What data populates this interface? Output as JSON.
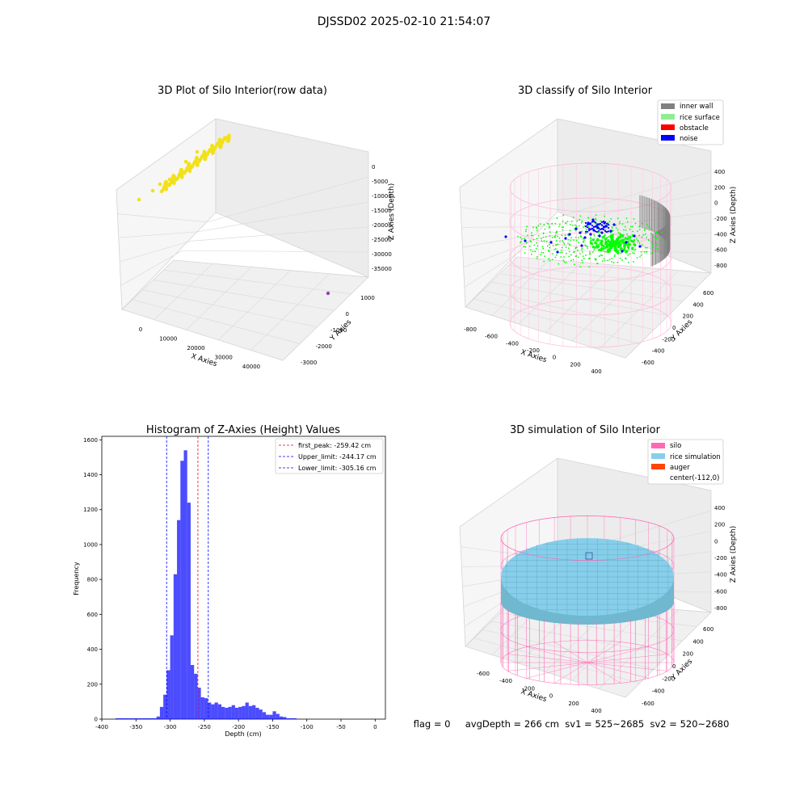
{
  "figure_title": "DJSSD02 2025-02-10 21:54:07",
  "status_line": "flag = 0     avgDepth = 266 cm  sv1 = 525~2685  sv2 = 520~2680",
  "colors": {
    "raw_points": "#f2e11b",
    "raw_outlier": "#8e44ad",
    "inner_wall": "#808080",
    "rice_surface": "#90ee90",
    "rice_points": "#00ff00",
    "obstacle": "#ff0000",
    "noise": "#0000ff",
    "silo_mesh": "#ff69b4",
    "rice_sim": "#87ceeb",
    "auger": "#ff4500",
    "histogram": "#0000ff",
    "first_peak": "#ff0000",
    "limits": "#0000ff"
  },
  "chart_data": [
    {
      "type": "scatter",
      "projection": "3d",
      "title": "3D Plot of Silo Interior(row data)",
      "xlabel": "X Axies",
      "ylabel": "Y Axies",
      "zlabel": "Z Axies (Depth)",
      "x_ticks": [
        "0",
        "10000",
        "20000",
        "30000",
        "40000"
      ],
      "y_ticks": [
        "-3000",
        "-2000",
        "-1000",
        "0",
        "1000"
      ],
      "z_ticks": [
        "-35000",
        "-30000",
        "-25000",
        "-20000",
        "-15000",
        "-10000",
        "-5000",
        "0"
      ],
      "xlim": [
        -5000,
        45000
      ],
      "ylim": [
        -3500,
        1500
      ],
      "zlim": [
        -38000,
        2000
      ],
      "series": [
        {
          "color": "#f2e11b",
          "points": [
            [
              -200,
              1000,
              300
            ],
            [
              700,
              1100,
              250
            ],
            [
              1800,
              1200,
              200
            ],
            [
              2500,
              1250,
              150
            ],
            [
              3800,
              1300,
              120
            ],
            [
              5200,
              1350,
              100
            ],
            [
              6600,
              1380,
              80
            ],
            [
              8000,
              1400,
              60
            ],
            [
              1400,
              1150,
              500
            ],
            [
              4300,
              1320,
              600
            ]
          ]
        },
        {
          "color": "#8e44ad",
          "points": [
            [
              46000,
              -2600,
              -36500
            ]
          ]
        }
      ]
    },
    {
      "type": "scatter",
      "projection": "3d",
      "title": "3D classify of Silo Interior",
      "xlabel": "X Axies",
      "ylabel": "Y Axies",
      "zlabel": "Z Axies (Depth)",
      "x_ticks": [
        "-800",
        "-600",
        "-400",
        "-200",
        "0",
        "200",
        "400"
      ],
      "y_ticks": [
        "-600",
        "-400",
        "-200",
        "0",
        "200",
        "400",
        "600"
      ],
      "z_ticks": [
        "-800",
        "-600",
        "-400",
        "-200",
        "0",
        "200",
        "400"
      ],
      "xlim": [
        -900,
        500
      ],
      "ylim": [
        -700,
        700
      ],
      "zlim": [
        -950,
        500
      ],
      "legend_location": "top-right",
      "legend": [
        "inner wall",
        "rice surface",
        "obstacle",
        "noise"
      ]
    },
    {
      "type": "bar",
      "title": "Histogram of Z-Axies (Height) Values",
      "xlabel": "Depth (cm)",
      "ylabel": "Frequency",
      "xlim": [
        -400,
        15
      ],
      "ylim": [
        0,
        1620
      ],
      "x_ticks": [
        -400,
        -350,
        -300,
        -250,
        -200,
        -150,
        -100,
        -50,
        0
      ],
      "y_ticks": [
        0,
        200,
        400,
        600,
        800,
        1000,
        1200,
        1400,
        1600
      ],
      "bin_width": 5,
      "bins": [
        [
          -380,
          5
        ],
        [
          -375,
          5
        ],
        [
          -370,
          5
        ],
        [
          -365,
          5
        ],
        [
          -360,
          5
        ],
        [
          -355,
          5
        ],
        [
          -350,
          5
        ],
        [
          -345,
          5
        ],
        [
          -340,
          5
        ],
        [
          -335,
          5
        ],
        [
          -330,
          5
        ],
        [
          -325,
          5
        ],
        [
          -320,
          15
        ],
        [
          -315,
          70
        ],
        [
          -310,
          140
        ],
        [
          -305,
          280
        ],
        [
          -300,
          480
        ],
        [
          -295,
          830
        ],
        [
          -290,
          1140
        ],
        [
          -285,
          1480
        ],
        [
          -280,
          1540
        ],
        [
          -275,
          1240
        ],
        [
          -270,
          310
        ],
        [
          -265,
          260
        ],
        [
          -260,
          180
        ],
        [
          -255,
          125
        ],
        [
          -250,
          120
        ],
        [
          -245,
          95
        ],
        [
          -240,
          85
        ],
        [
          -235,
          95
        ],
        [
          -230,
          85
        ],
        [
          -225,
          70
        ],
        [
          -220,
          65
        ],
        [
          -215,
          70
        ],
        [
          -210,
          80
        ],
        [
          -205,
          65
        ],
        [
          -200,
          70
        ],
        [
          -195,
          75
        ],
        [
          -190,
          95
        ],
        [
          -185,
          75
        ],
        [
          -180,
          80
        ],
        [
          -175,
          65
        ],
        [
          -170,
          55
        ],
        [
          -165,
          40
        ],
        [
          -160,
          25
        ],
        [
          -155,
          25
        ],
        [
          -150,
          45
        ],
        [
          -145,
          30
        ],
        [
          -140,
          15
        ],
        [
          -135,
          12
        ],
        [
          -130,
          5
        ],
        [
          -125,
          5
        ],
        [
          -120,
          5
        ]
      ],
      "vlines": [
        {
          "x": -259.42,
          "label": "first_peak: -259.42 cm",
          "color": "#ff0000"
        },
        {
          "x": -244.17,
          "label": "Upper_limit: -244.17 cm",
          "color": "#0000ff"
        },
        {
          "x": -305.16,
          "label": "Lower_limit: -305.16 cm",
          "color": "#0000ff"
        }
      ],
      "legend_location": "top-right"
    },
    {
      "type": "surface",
      "projection": "3d",
      "title": "3D simulation of Silo Interior",
      "xlabel": "X Axies",
      "ylabel": "Y Axies",
      "zlabel": "Z Axies (Depth)",
      "x_ticks": [
        "-600",
        "-400",
        "-200",
        "0",
        "200",
        "400"
      ],
      "y_ticks": [
        "-600",
        "-400",
        "-200",
        "0",
        "200",
        "400",
        "600"
      ],
      "z_ticks": [
        "-800",
        "-600",
        "-400",
        "-200",
        "0",
        "200",
        "400"
      ],
      "legend_location": "top-right",
      "legend": [
        "silo",
        "rice simulation",
        "auger",
        "center(-112,0)"
      ]
    }
  ]
}
